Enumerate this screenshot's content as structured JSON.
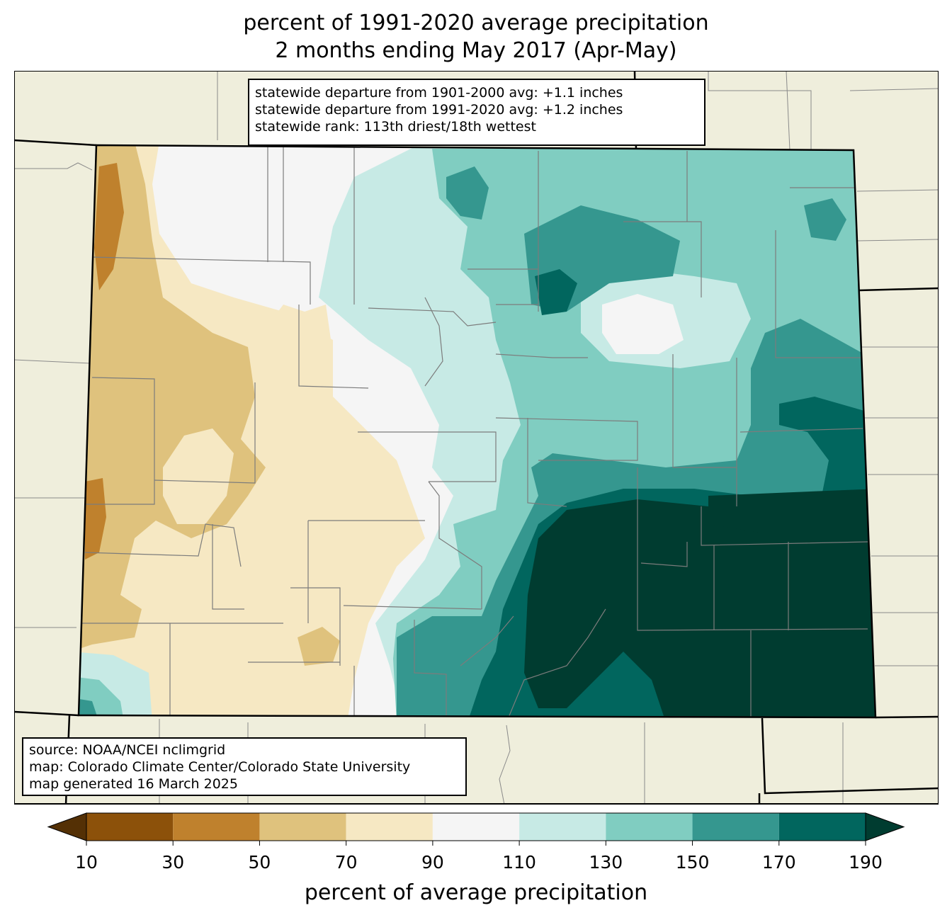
{
  "title": {
    "line1": "percent of 1991-2020 average precipitation",
    "line2": "2 months ending May 2017 (Apr-May)"
  },
  "stats_box": {
    "lines": [
      "statewide departure from 1901-2000 avg: +1.1 inches",
      "statewide departure from 1991-2020 avg: +1.2 inches",
      "statewide rank: 113th driest/18th wettest"
    ]
  },
  "source_box": {
    "lines": [
      "source: NOAA/NCEI nclimgrid",
      "map: Colorado Climate Center/Colorado State University",
      "map generated 16 March 2025"
    ]
  },
  "colorbar": {
    "label": "percent of average precipitation",
    "ticks": [
      "10",
      "30",
      "50",
      "70",
      "90",
      "110",
      "130",
      "150",
      "170",
      "190"
    ],
    "under_color": "#543005",
    "over_color": "#003c30",
    "bins": [
      {
        "range": "10-30",
        "color": "#8c510a"
      },
      {
        "range": "30-50",
        "color": "#bf812d"
      },
      {
        "range": "50-70",
        "color": "#dfc27d"
      },
      {
        "range": "70-90",
        "color": "#f6e8c3"
      },
      {
        "range": "90-110",
        "color": "#f5f5f5"
      },
      {
        "range": "110-130",
        "color": "#c7eae5"
      },
      {
        "range": "130-150",
        "color": "#80cdc1"
      },
      {
        "range": "150-170",
        "color": "#35978f"
      },
      {
        "range": "170-190",
        "color": "#01665e"
      }
    ]
  },
  "map": {
    "region": "Colorado",
    "background_color": "#efeedc",
    "border_color": "#000000",
    "county_line_color": "#808080"
  }
}
